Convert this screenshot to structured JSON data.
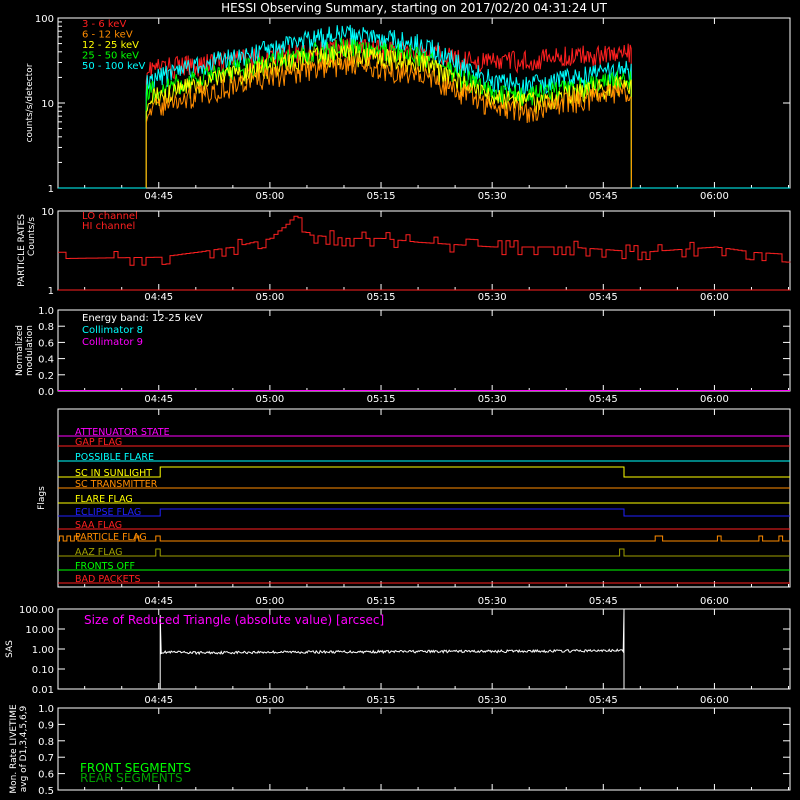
{
  "title": "HESSI Observing Summary, starting on 2017/02/20 04:31:24 UT",
  "time_axis": {
    "tick_labels": [
      "04:45",
      "05:00",
      "05:15",
      "05:30",
      "05:45",
      "06:00"
    ],
    "tick_minutes": [
      285,
      300,
      315,
      330,
      345,
      360
    ],
    "range_minutes": [
      271.4,
      370.2
    ]
  },
  "colors": {
    "axis": "#ffffff",
    "red": "#ff2020",
    "orange": "#ff8c00",
    "yellow": "#ffff00",
    "green": "#00ff00",
    "cyan": "#00ffff",
    "magenta": "#ff00ff",
    "blue": "#2020ff",
    "darkgreen": "#00a000",
    "olive": "#a0a000"
  },
  "chart_data": [
    {
      "id": "counts",
      "type": "line",
      "ylabel": "counts/s/detector",
      "yscale": "log",
      "ylim": [
        1,
        100
      ],
      "ytick_labels": [
        "1",
        "10",
        "100"
      ],
      "ytick_values": [
        1,
        10,
        100
      ],
      "data_range_minutes": [
        283.3,
        348.8
      ],
      "series": [
        {
          "name": "3 - 6 keV",
          "color": "#ff2020",
          "x": [
            283.3,
            290,
            300,
            310,
            320,
            325,
            330,
            335,
            340,
            345,
            348.8
          ],
          "y": [
            25,
            28,
            35,
            45,
            40,
            33,
            30,
            32,
            35,
            38,
            38
          ]
        },
        {
          "name": "6 - 12 keV",
          "color": "#ff8c00",
          "x": [
            283.3,
            290,
            300,
            310,
            320,
            325,
            330,
            335,
            340,
            345,
            348.8
          ],
          "y": [
            8,
            12,
            20,
            28,
            22,
            14,
            9,
            8,
            10,
            12,
            14
          ]
        },
        {
          "name": "12 - 25 keV",
          "color": "#ffff00",
          "x": [
            283.3,
            290,
            300,
            310,
            320,
            325,
            330,
            335,
            340,
            345,
            348.8
          ],
          "y": [
            11,
            16,
            26,
            38,
            30,
            18,
            11,
            10,
            12,
            15,
            17
          ]
        },
        {
          "name": "25 - 50 keV",
          "color": "#00ff00",
          "x": [
            283.3,
            290,
            300,
            310,
            320,
            325,
            330,
            335,
            340,
            345,
            348.8
          ],
          "y": [
            13,
            19,
            30,
            45,
            36,
            21,
            13,
            12,
            14,
            17,
            20
          ]
        },
        {
          "name": "50 - 100 keV",
          "color": "#00ffff",
          "x": [
            283.3,
            290,
            300,
            310,
            320,
            325,
            330,
            335,
            340,
            345,
            348.8
          ],
          "y": [
            18,
            26,
            42,
            65,
            50,
            30,
            18,
            16,
            19,
            23,
            27
          ]
        }
      ]
    },
    {
      "id": "particle",
      "type": "line",
      "ylabel": "PARTICLE RATES Counts/s",
      "yscale": "log",
      "ylim": [
        1,
        10
      ],
      "ytick_labels": [
        "1",
        "10"
      ],
      "ytick_values": [
        1,
        10
      ],
      "series": [
        {
          "name": "LO channel",
          "color": "#ff2020",
          "x": [
            271.4,
            285,
            290,
            295,
            300,
            302,
            303.5,
            305,
            310,
            315,
            320,
            330,
            340,
            350,
            360,
            365,
            370.2
          ],
          "y": [
            2.5,
            2.6,
            3.0,
            3.5,
            4.5,
            6.5,
            9.0,
            5.0,
            4.5,
            4.5,
            4.0,
            3.5,
            3.5,
            3.0,
            3.5,
            3.0,
            2.8
          ]
        },
        {
          "name": "HI channel",
          "color": "#ff2020",
          "x": [
            271.4,
            370.2
          ],
          "y": [
            1,
            1
          ]
        }
      ]
    },
    {
      "id": "modulation",
      "type": "line",
      "ylabel": "Normalized modulation",
      "ylim": [
        0.0,
        1.0
      ],
      "ytick_labels": [
        "0.0",
        "0.2",
        "0.4",
        "0.6",
        "0.8",
        "1.0"
      ],
      "ytick_values": [
        0.0,
        0.2,
        0.4,
        0.6,
        0.8,
        1.0
      ],
      "energy_band_label": "Energy band: 12-25 keV",
      "series": [
        {
          "name": "Collimator 8",
          "color": "#00ffff",
          "x": [
            271.4,
            370.2
          ],
          "y": [
            0.0,
            0.0
          ]
        },
        {
          "name": "Collimator 9",
          "color": "#ff00ff",
          "x": [
            271.4,
            370.2
          ],
          "y": [
            0.0,
            0.0
          ]
        }
      ]
    },
    {
      "id": "flags",
      "type": "line",
      "ylabel": "Flags",
      "series": [
        {
          "name": "ATTENUATOR STATE",
          "color": "#ff00ff",
          "changes": []
        },
        {
          "name": "GAP FLAG",
          "color": "#ff2020",
          "changes": [
            351.5
          ]
        },
        {
          "name": "POSSIBLE FLARE",
          "color": "#00ffff",
          "changes": []
        },
        {
          "name": "SC IN SUNLIGHT",
          "color": "#ffff00",
          "changes": [
            285.2,
            347.8
          ]
        },
        {
          "name": "SC TRANSMITTER",
          "color": "#ff8c00",
          "changes": []
        },
        {
          "name": "FLARE FLAG",
          "color": "#ffff00",
          "changes": []
        },
        {
          "name": "ECLIPSE FLAG",
          "color": "#2020ff",
          "changes": [
            285.2,
            347.8
          ]
        },
        {
          "name": "SAA FLAG",
          "color": "#ff2020",
          "changes": []
        },
        {
          "name": "PARTICLE FLAG",
          "color": "#ff8c00",
          "changes": [
            271.6,
            272.1,
            272.6,
            273.1,
            273.6,
            274.1,
            281.8,
            282.3,
            284.6,
            285.2,
            352,
            353,
            360.4,
            360.9,
            366,
            366.5,
            368.7,
            369.2
          ]
        },
        {
          "name": "AAZ FLAG",
          "color": "#a0a000",
          "changes": [
            284.6,
            285.2,
            347.2,
            347.8
          ]
        },
        {
          "name": "FRONTS OFF",
          "color": "#00ff00",
          "changes": []
        },
        {
          "name": "BAD PACKETS",
          "color": "#ff2020",
          "changes": []
        }
      ]
    },
    {
      "id": "sas",
      "type": "line",
      "ylabel": "SAS",
      "yscale": "log",
      "ylim": [
        0.01,
        100.0
      ],
      "ytick_labels": [
        "0.01",
        "0.10",
        "1.00",
        "10.00",
        "100.00"
      ],
      "ytick_values": [
        0.01,
        0.1,
        1.0,
        10.0,
        100.0
      ],
      "annotation": "Size of Reduced Triangle (absolute value) [arcsec]",
      "series": [
        {
          "name": "Size of Reduced Triangle",
          "color": "#ffffff",
          "x": [
            285.2,
            290,
            300,
            320,
            340,
            347.8
          ],
          "y": [
            0.7,
            0.65,
            0.7,
            0.75,
            0.8,
            0.85
          ]
        }
      ]
    },
    {
      "id": "livetime",
      "type": "line",
      "ylabel": "Mon. Rate LIVETIME avg of D1,3,4,5,6,9",
      "ylim": [
        0.5,
        1.0
      ],
      "ytick_labels": [
        "0.5",
        "0.6",
        "0.7",
        "0.8",
        "0.9",
        "1.0"
      ],
      "ytick_values": [
        0.5,
        0.6,
        0.7,
        0.8,
        0.9,
        1.0
      ],
      "series": [
        {
          "name": "FRONT SEGMENTS",
          "color": "#00ff00",
          "x": [],
          "y": []
        },
        {
          "name": "REAR SEGMENTS",
          "color": "#00a000",
          "x": [],
          "y": []
        }
      ]
    }
  ]
}
